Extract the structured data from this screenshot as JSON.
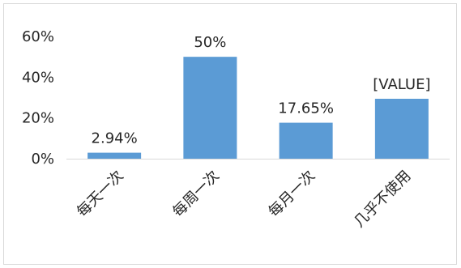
{
  "chart_data": {
    "type": "bar",
    "categories": [
      "每天一次",
      "每周一次",
      "每月一次",
      "几乎不使用"
    ],
    "values": [
      2.94,
      50,
      17.65,
      29.41
    ],
    "data_labels": [
      "2.94%",
      "50%",
      "17.65%",
      "[VALUE]"
    ],
    "y_ticks": [
      "0%",
      "20%",
      "40%",
      "60%"
    ],
    "ylim": [
      0,
      60
    ],
    "grid": false,
    "legend": "none",
    "bar_color": "#5b9bd5",
    "axis_color": "#d9d9d9"
  }
}
